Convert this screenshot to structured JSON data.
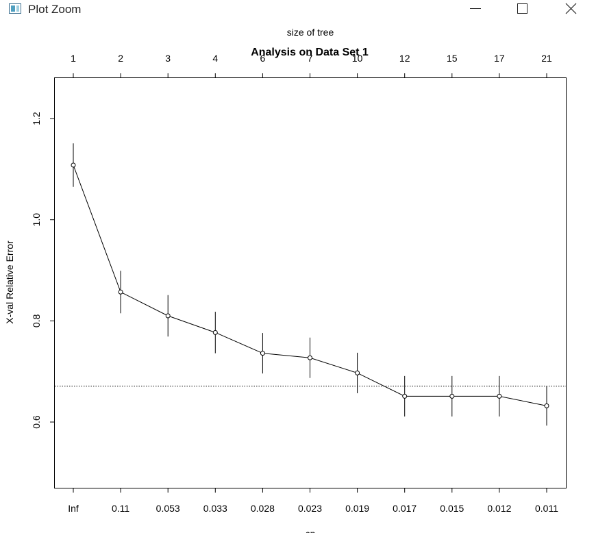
{
  "window": {
    "title": "Plot Zoom",
    "icon": "plot-window-icon",
    "buttons": [
      "minimize-icon",
      "maximize-icon",
      "close-icon"
    ]
  },
  "chart_data": {
    "type": "line",
    "title": "Analysis on Data Set 1",
    "top_axis_label": "size of tree",
    "xlabel": "cp",
    "ylabel": "X-val Relative Error",
    "x_top_ticks": [
      "1",
      "2",
      "3",
      "4",
      "6",
      "7",
      "10",
      "12",
      "15",
      "17",
      "21"
    ],
    "categories": [
      "Inf",
      "0.11",
      "0.053",
      "0.033",
      "0.028",
      "0.023",
      "0.019",
      "0.017",
      "0.015",
      "0.012",
      "0.011"
    ],
    "y_ticks": [
      "0.6",
      "0.8",
      "1.0",
      "1.2"
    ],
    "ylim": [
      0.47,
      1.28
    ],
    "series": [
      {
        "values": [
          1.108,
          0.857,
          0.81,
          0.777,
          0.736,
          0.727,
          0.697,
          0.651,
          0.651,
          0.651,
          0.632
        ],
        "error": [
          0.043,
          0.042,
          0.041,
          0.041,
          0.04,
          0.04,
          0.04,
          0.04,
          0.04,
          0.04,
          0.039
        ],
        "color": "#000000"
      }
    ],
    "reference_line": {
      "y": 0.671,
      "style": "dotted"
    },
    "grid": false
  }
}
